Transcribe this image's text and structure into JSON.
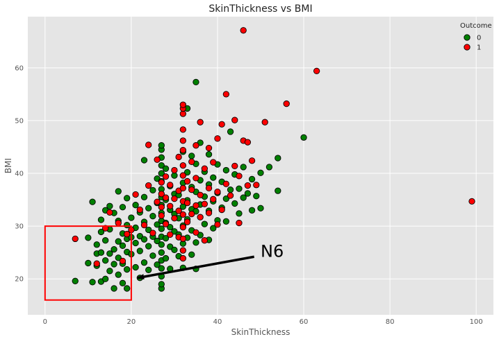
{
  "chart_data": {
    "type": "scatter",
    "title": "SkinThickness vs BMI",
    "xlabel": "SkinThickness",
    "ylabel": "BMI",
    "xlim": [
      -4,
      104
    ],
    "ylim": [
      13.2,
      69.7
    ],
    "xticks": [
      0,
      20,
      40,
      60,
      80,
      100
    ],
    "yticks": [
      20,
      30,
      40,
      50,
      60
    ],
    "grid": true,
    "legend": {
      "title": "Outcome",
      "placement": "top-right"
    },
    "colors": {
      "0": "#008000",
      "1": "#ff0000",
      "background": "#e5e5e5",
      "grid": "#ffffff"
    },
    "series": [
      {
        "name": "0",
        "points": [
          [
            7,
            19.6
          ],
          [
            10,
            23
          ],
          [
            10,
            27.8
          ],
          [
            11,
            19.4
          ],
          [
            11,
            34.6
          ],
          [
            12,
            22.5
          ],
          [
            12,
            24.8
          ],
          [
            12,
            26.5
          ],
          [
            13,
            19.5
          ],
          [
            13,
            25
          ],
          [
            13,
            28.9
          ],
          [
            13,
            31.2
          ],
          [
            14,
            20
          ],
          [
            14,
            23.5
          ],
          [
            14,
            27.3
          ],
          [
            14,
            33
          ],
          [
            15,
            21.5
          ],
          [
            15,
            24.8
          ],
          [
            15,
            29.4
          ],
          [
            15,
            33.8
          ],
          [
            16,
            18.2
          ],
          [
            16,
            22.8
          ],
          [
            16,
            25.6
          ],
          [
            16,
            32.5
          ],
          [
            17,
            20.8
          ],
          [
            17,
            24
          ],
          [
            17,
            27.1
          ],
          [
            17,
            31
          ],
          [
            17,
            36.6
          ],
          [
            18,
            19.2
          ],
          [
            18,
            22.9
          ],
          [
            18,
            26.3
          ],
          [
            18,
            28.6
          ],
          [
            18,
            33.6
          ],
          [
            19,
            18.2
          ],
          [
            19,
            21.8
          ],
          [
            19,
            25.1
          ],
          [
            19,
            27.6
          ],
          [
            19,
            30.2
          ],
          [
            19,
            35.3
          ],
          [
            20,
            24.7
          ],
          [
            20,
            27.9
          ],
          [
            20,
            31.6
          ],
          [
            21,
            22.2
          ],
          [
            21,
            26.8
          ],
          [
            21,
            29.7
          ],
          [
            21,
            34
          ],
          [
            22,
            20.2
          ],
          [
            22,
            25.3
          ],
          [
            22,
            28.1
          ],
          [
            22,
            32.6
          ],
          [
            23,
            23.1
          ],
          [
            23,
            27.5
          ],
          [
            23,
            30.8
          ],
          [
            23,
            35.5
          ],
          [
            23,
            42.5
          ],
          [
            24,
            21.7
          ],
          [
            24,
            26.2
          ],
          [
            24,
            29.3
          ],
          [
            24,
            33.4
          ],
          [
            25,
            24.4
          ],
          [
            25,
            28
          ],
          [
            25,
            31.9
          ],
          [
            25,
            36.8
          ],
          [
            26,
            22.7
          ],
          [
            26,
            27.2
          ],
          [
            26,
            30.3
          ],
          [
            26,
            34.4
          ],
          [
            26,
            39
          ],
          [
            27,
            18.2
          ],
          [
            27,
            19
          ],
          [
            27,
            20.5
          ],
          [
            27,
            22
          ],
          [
            27,
            23.5
          ],
          [
            27,
            25
          ],
          [
            27,
            26.5
          ],
          [
            27,
            28
          ],
          [
            27,
            29.5
          ],
          [
            27,
            31
          ],
          [
            27,
            32.5
          ],
          [
            27,
            34
          ],
          [
            27,
            35.5
          ],
          [
            27,
            37
          ],
          [
            27,
            38.5
          ],
          [
            27,
            40
          ],
          [
            27,
            41.5
          ],
          [
            27,
            43
          ],
          [
            27,
            44.5
          ],
          [
            27,
            45.3
          ],
          [
            28,
            23.9
          ],
          [
            28,
            27.7
          ],
          [
            28,
            30.6
          ],
          [
            28,
            35
          ],
          [
            28,
            40.9
          ],
          [
            29,
            21.9
          ],
          [
            29,
            26.1
          ],
          [
            29,
            29.8
          ],
          [
            29,
            33.1
          ],
          [
            29,
            37.6
          ],
          [
            30,
            25.5
          ],
          [
            30,
            29
          ],
          [
            30,
            32.3
          ],
          [
            30,
            36.1
          ],
          [
            30,
            39.6
          ],
          [
            31,
            24.3
          ],
          [
            31,
            28.4
          ],
          [
            31,
            31.5
          ],
          [
            31,
            35.9
          ],
          [
            32,
            22.1
          ],
          [
            32,
            26.7
          ],
          [
            32,
            30.1
          ],
          [
            32,
            33.7
          ],
          [
            32,
            38.2
          ],
          [
            32,
            44.1
          ],
          [
            33,
            27.8
          ],
          [
            33,
            31.3
          ],
          [
            33,
            34.9
          ],
          [
            33,
            40.2
          ],
          [
            33,
            52.3
          ],
          [
            34,
            24.6
          ],
          [
            34,
            29.2
          ],
          [
            34,
            33.2
          ],
          [
            34,
            37.4
          ],
          [
            34,
            43.3
          ],
          [
            35,
            21.9
          ],
          [
            35,
            26.9
          ],
          [
            35,
            32.8
          ],
          [
            35,
            36.5
          ],
          [
            35,
            41.8
          ],
          [
            35,
            57.3
          ],
          [
            36,
            28.3
          ],
          [
            36,
            34.1
          ],
          [
            36,
            38.7
          ],
          [
            36,
            45.8
          ],
          [
            37,
            30.4
          ],
          [
            37,
            35.6
          ],
          [
            37,
            40.3
          ],
          [
            38,
            27.4
          ],
          [
            38,
            32.9
          ],
          [
            38,
            37.9
          ],
          [
            38,
            43.6
          ],
          [
            39,
            29.6
          ],
          [
            39,
            34.7
          ],
          [
            39,
            39.2
          ],
          [
            40,
            31.1
          ],
          [
            40,
            36.3
          ],
          [
            40,
            41.7
          ],
          [
            41,
            33.5
          ],
          [
            41,
            38.4
          ],
          [
            42,
            30.9
          ],
          [
            42,
            35.2
          ],
          [
            42,
            40.6
          ],
          [
            43,
            36.9
          ],
          [
            43,
            47.9
          ],
          [
            44,
            34.3
          ],
          [
            44,
            39.8
          ],
          [
            45,
            32.4
          ],
          [
            45,
            37.1
          ],
          [
            46,
            35.4
          ],
          [
            46,
            41.2
          ],
          [
            47,
            36.2
          ],
          [
            48,
            33
          ],
          [
            48,
            38.9
          ],
          [
            49,
            35.7
          ],
          [
            50,
            33.4
          ],
          [
            50,
            40.1
          ],
          [
            52,
            41.2
          ],
          [
            54,
            36.7
          ],
          [
            54,
            42.9
          ],
          [
            60,
            46.8
          ]
        ]
      },
      {
        "name": "1",
        "points": [
          [
            7,
            27.6
          ],
          [
            12,
            22.9
          ],
          [
            14,
            29.6
          ],
          [
            15,
            32.6
          ],
          [
            17,
            30.6
          ],
          [
            18,
            23.4
          ],
          [
            19,
            28.5
          ],
          [
            20,
            29.3
          ],
          [
            21,
            36
          ],
          [
            22,
            33.1
          ],
          [
            23,
            30.2
          ],
          [
            24,
            37.7
          ],
          [
            24,
            45.4
          ],
          [
            25,
            28.7
          ],
          [
            26,
            34.6
          ],
          [
            26,
            42.6
          ],
          [
            27,
            32
          ],
          [
            27,
            33.6
          ],
          [
            27,
            36.1
          ],
          [
            27,
            38.3
          ],
          [
            28,
            30.4
          ],
          [
            28,
            35.4
          ],
          [
            28,
            39.4
          ],
          [
            29,
            28.4
          ],
          [
            29,
            33.8
          ],
          [
            29,
            37.8
          ],
          [
            30,
            31.5
          ],
          [
            30,
            35.2
          ],
          [
            30,
            40.6
          ],
          [
            31,
            27.9
          ],
          [
            31,
            32.9
          ],
          [
            31,
            36.7
          ],
          [
            31,
            43.1
          ],
          [
            32,
            23.9
          ],
          [
            32,
            25.4
          ],
          [
            32,
            27.6
          ],
          [
            32,
            29.8
          ],
          [
            32,
            32.2
          ],
          [
            32,
            34.7
          ],
          [
            32,
            37.2
          ],
          [
            32,
            39.6
          ],
          [
            32,
            41.5
          ],
          [
            32,
            44.4
          ],
          [
            32,
            46.2
          ],
          [
            32,
            48.3
          ],
          [
            32,
            51.3
          ],
          [
            32,
            52.3
          ],
          [
            32,
            53
          ],
          [
            33,
            30.8
          ],
          [
            33,
            34.4
          ],
          [
            33,
            38.5
          ],
          [
            34,
            32.3
          ],
          [
            34,
            36.9
          ],
          [
            34,
            42.2
          ],
          [
            35,
            28.8
          ],
          [
            35,
            33.9
          ],
          [
            35,
            39.1
          ],
          [
            35,
            45.3
          ],
          [
            36,
            31.7
          ],
          [
            36,
            35.9
          ],
          [
            36,
            49.7
          ],
          [
            37,
            27.3
          ],
          [
            37,
            34.2
          ],
          [
            37,
            40.9
          ],
          [
            38,
            32.5
          ],
          [
            38,
            37.2
          ],
          [
            38,
            44.8
          ],
          [
            39,
            35.1
          ],
          [
            39,
            42.1
          ],
          [
            40,
            30.3
          ],
          [
            40,
            36.5
          ],
          [
            40,
            46.6
          ],
          [
            41,
            33.1
          ],
          [
            41,
            49.3
          ],
          [
            42,
            38
          ],
          [
            42,
            55
          ],
          [
            43,
            35.8
          ],
          [
            44,
            41.4
          ],
          [
            44,
            50.1
          ],
          [
            45,
            30.6
          ],
          [
            45,
            39.5
          ],
          [
            46,
            46.2
          ],
          [
            46,
            67.1
          ],
          [
            47,
            37.7
          ],
          [
            47,
            45.9
          ],
          [
            48,
            42.4
          ],
          [
            49,
            37.8
          ],
          [
            51,
            49.7
          ],
          [
            56,
            53.2
          ],
          [
            63,
            59.4
          ],
          [
            99,
            34.7
          ]
        ]
      }
    ],
    "annotations": [
      {
        "text": "N6",
        "text_at": [
          50,
          25.2
        ],
        "arrow_from": [
          48.5,
          24.2
        ],
        "arrow_to": [
          21.5,
          20.2
        ]
      }
    ],
    "highlight_rect": {
      "x": [
        0,
        20
      ],
      "y": [
        16,
        30
      ],
      "color": "#ff0000"
    }
  }
}
